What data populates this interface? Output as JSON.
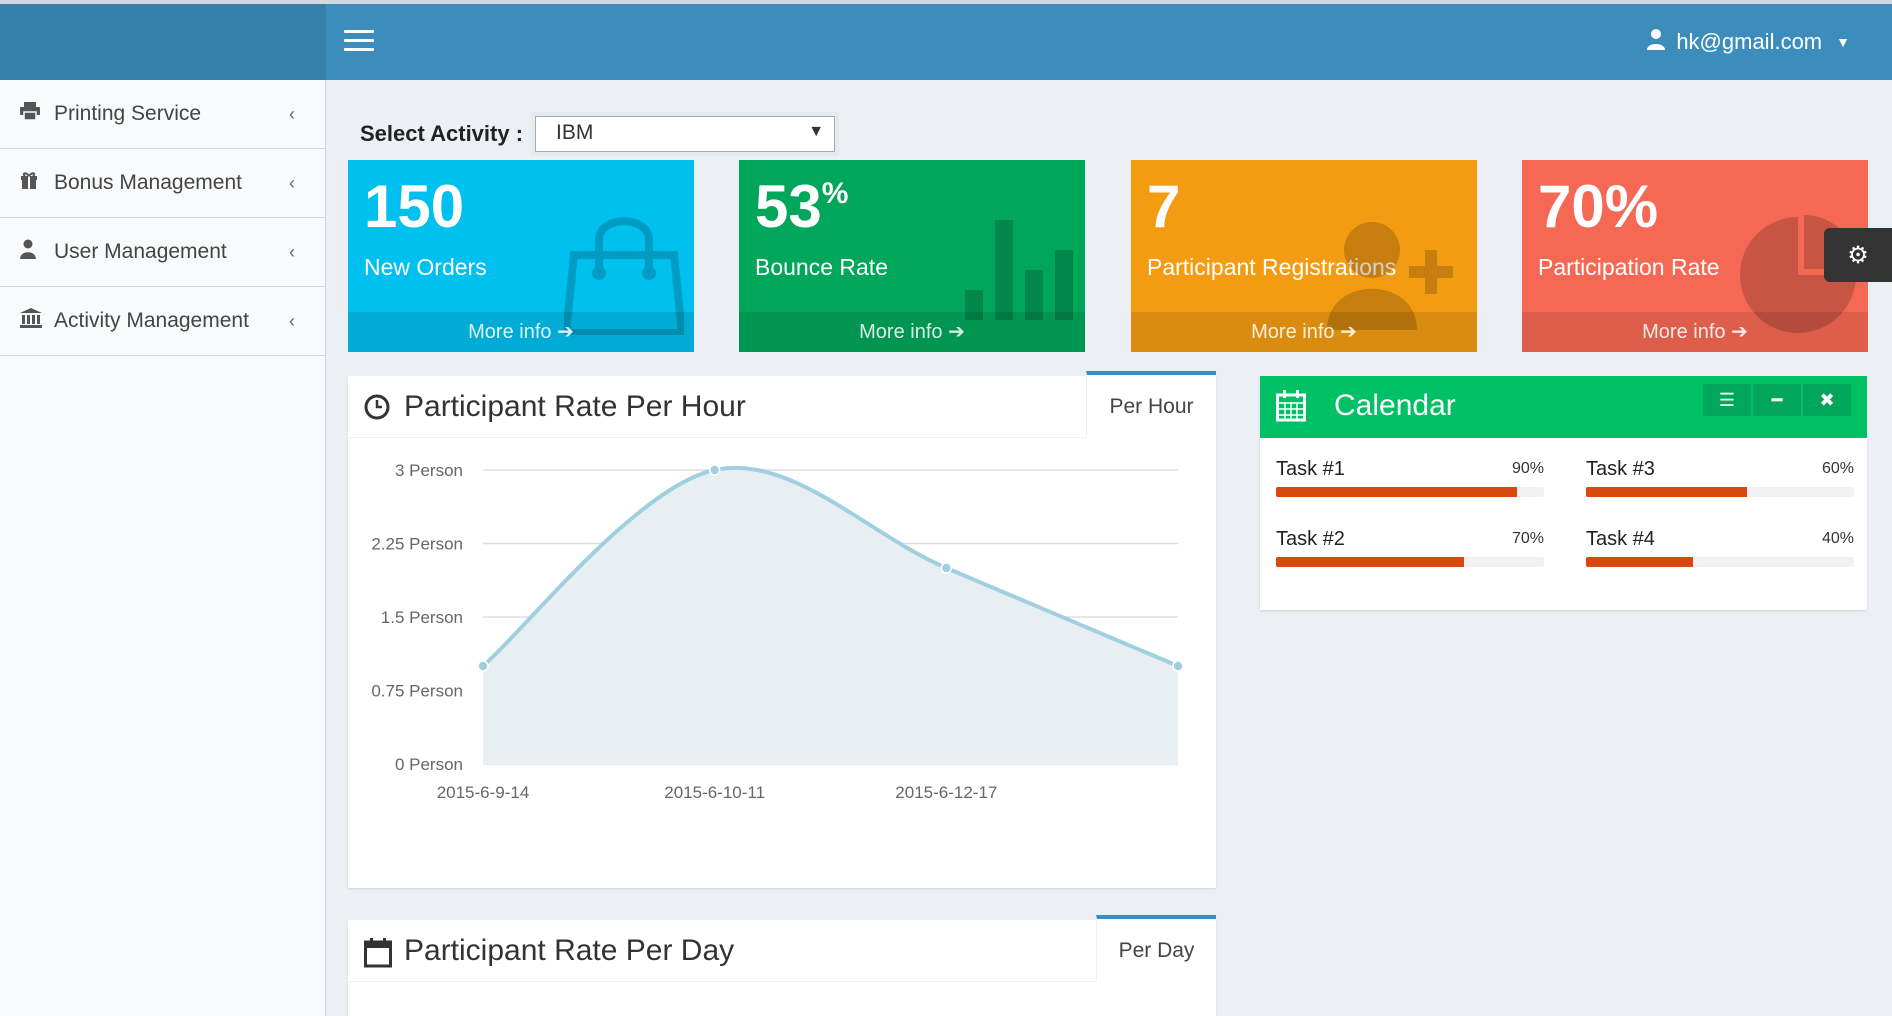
{
  "header": {
    "user": "hk@gmail.com"
  },
  "sidebar": {
    "items": [
      {
        "label": "Printing Service",
        "icon": "print-icon"
      },
      {
        "label": "Bonus Management",
        "icon": "gift-icon"
      },
      {
        "label": "User Management",
        "icon": "user-icon"
      },
      {
        "label": "Activity Management",
        "icon": "bank-icon"
      }
    ]
  },
  "select": {
    "label": "Select Activity :",
    "value": "IBM"
  },
  "stats": [
    {
      "value": "150",
      "suffix": "",
      "label": "New Orders",
      "more": "More info",
      "color": "#00c0ef",
      "icon": "shopping-bag-icon"
    },
    {
      "value": "53",
      "suffix": "%",
      "label": "Bounce Rate",
      "more": "More info",
      "color": "#00a65a",
      "icon": "bar-chart-icon"
    },
    {
      "value": "7",
      "suffix": "",
      "label": "Participant Registrations",
      "more": "More info",
      "color": "#f39c12",
      "icon": "user-add-icon"
    },
    {
      "value": "70%",
      "suffix": "",
      "label": "Participation Rate",
      "more": "More info",
      "color": "#f56954",
      "icon": "pie-chart-icon"
    }
  ],
  "hourly": {
    "title": "Participant Rate Per Hour",
    "tab": "Per Hour"
  },
  "daily": {
    "title": "Participant Rate Per Day",
    "tab": "Per Day"
  },
  "calendar": {
    "title": "Calendar",
    "tasks": [
      {
        "name": "Task #1",
        "pct": "90%",
        "value": 0.9
      },
      {
        "name": "Task #3",
        "pct": "60%",
        "value": 0.6
      },
      {
        "name": "Task #2",
        "pct": "70%",
        "value": 0.7
      },
      {
        "name": "Task #4",
        "pct": "40%",
        "value": 0.4
      }
    ]
  },
  "chart_data": {
    "type": "area",
    "x": [
      "2015-6-9-14",
      "2015-6-10-11",
      "2015-6-12-17",
      ""
    ],
    "categories": [
      "2015-6-9-14",
      "2015-6-10-11",
      "2015-6-12-17"
    ],
    "values": [
      1,
      3,
      2,
      1
    ],
    "yticks": [
      "3 Person",
      "2.25 Person",
      "1.5 Person",
      "0.75 Person",
      "0 Person"
    ],
    "ylim": [
      0,
      3
    ],
    "grid": true,
    "line_color": "#a0d0e0",
    "fill_color": "#e8eff3"
  }
}
